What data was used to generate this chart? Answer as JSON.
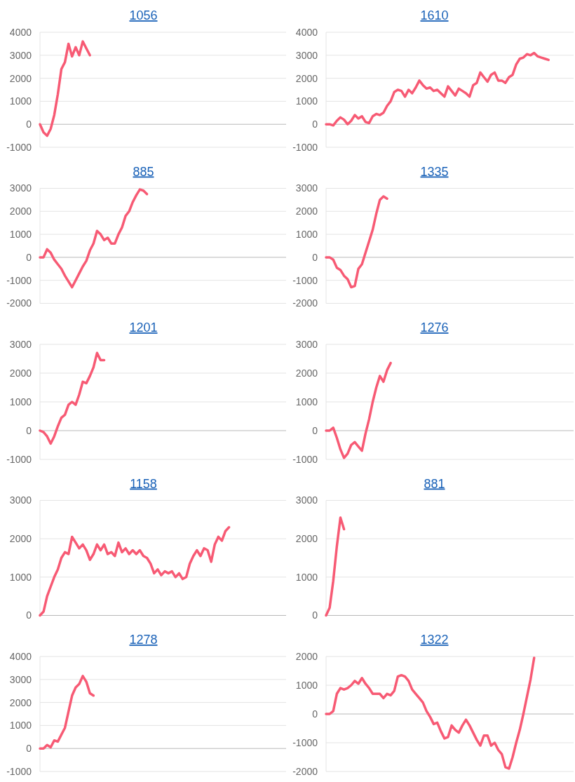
{
  "chart_data": [
    {
      "type": "line",
      "title": "1056",
      "color": "#f75a74",
      "ylim": [
        -1000,
        4000
      ],
      "yticks": [
        -1000,
        0,
        1000,
        2000,
        3000,
        4000
      ],
      "grid": "y",
      "tick_labels": "y",
      "categories": [
        null,
        null,
        null,
        null,
        null,
        null,
        null,
        null,
        null,
        null,
        null,
        null,
        null,
        null,
        null,
        null,
        null,
        null,
        null,
        null,
        null,
        null,
        null,
        null,
        null,
        null,
        null,
        null,
        null,
        null,
        null,
        null,
        null,
        null,
        null,
        null,
        null,
        null,
        null,
        null,
        null,
        null,
        null,
        null,
        null,
        null,
        null,
        null,
        null,
        null,
        null,
        null,
        null,
        null,
        null,
        null,
        null,
        null,
        null,
        null,
        null,
        null,
        null,
        null,
        null,
        null,
        null,
        null,
        null,
        null
      ],
      "values": [
        0,
        -350,
        -500,
        -200,
        400,
        1300,
        2400,
        2700,
        3500,
        2950,
        3350,
        3000,
        3600,
        3300,
        3000,
        null,
        null,
        null,
        null,
        null,
        null,
        null,
        null,
        null,
        null,
        null,
        null,
        null,
        null,
        null,
        null,
        null,
        null,
        null,
        null,
        null,
        null,
        null,
        null,
        null,
        null,
        null,
        null,
        null,
        null,
        null,
        null,
        null,
        null,
        null,
        null,
        null,
        null,
        null,
        null,
        null,
        null,
        null,
        null,
        null,
        null,
        null,
        null,
        null,
        null,
        null,
        null,
        null,
        null,
        null
      ]
    },
    {
      "type": "line",
      "title": "1610",
      "color": "#f75a74",
      "ylim": [
        -1000,
        4000
      ],
      "yticks": [
        -1000,
        0,
        1000,
        2000,
        3000,
        4000
      ],
      "grid": "y",
      "tick_labels": "y",
      "categories": [
        null,
        null,
        null,
        null,
        null,
        null,
        null,
        null,
        null,
        null,
        null,
        null,
        null,
        null,
        null,
        null,
        null,
        null,
        null,
        null,
        null,
        null,
        null,
        null,
        null,
        null,
        null,
        null,
        null,
        null,
        null,
        null,
        null,
        null,
        null,
        null,
        null,
        null,
        null,
        null,
        null,
        null,
        null,
        null,
        null,
        null,
        null,
        null,
        null,
        null,
        null,
        null,
        null,
        null,
        null,
        null,
        null,
        null,
        null,
        null,
        null,
        null,
        null,
        null,
        null,
        null,
        null,
        null,
        null,
        null
      ],
      "values": [
        0,
        0,
        -50,
        150,
        300,
        200,
        0,
        150,
        400,
        250,
        350,
        100,
        50,
        350,
        450,
        400,
        500,
        800,
        1000,
        1400,
        1500,
        1450,
        1200,
        1500,
        1350,
        1600,
        1900,
        1700,
        1550,
        1600,
        1450,
        1500,
        1350,
        1200,
        1650,
        1450,
        1250,
        1550,
        1450,
        1350,
        1200,
        1700,
        1800,
        2250,
        2050,
        1850,
        2150,
        2250,
        1900,
        1900,
        1800,
        2050,
        2150,
        2600,
        2850,
        2900,
        3050,
        3000,
        3100,
        2950,
        2900,
        2850,
        2800,
        null,
        null,
        null,
        null,
        null,
        null,
        null
      ]
    },
    {
      "type": "line",
      "title": "885",
      "color": "#f75a74",
      "ylim": [
        -2000,
        3000
      ],
      "yticks": [
        -2000,
        -1000,
        0,
        1000,
        2000,
        3000
      ],
      "grid": "y",
      "tick_labels": "y",
      "categories": [
        null,
        null,
        null,
        null,
        null,
        null,
        null,
        null,
        null,
        null,
        null,
        null,
        null,
        null,
        null,
        null,
        null,
        null,
        null,
        null,
        null,
        null,
        null,
        null,
        null,
        null,
        null,
        null,
        null,
        null,
        null,
        null,
        null,
        null,
        null,
        null,
        null,
        null,
        null,
        null,
        null,
        null,
        null,
        null,
        null,
        null,
        null,
        null,
        null,
        null,
        null,
        null,
        null,
        null,
        null,
        null,
        null,
        null,
        null,
        null,
        null,
        null,
        null,
        null,
        null,
        null,
        null,
        null,
        null,
        null
      ],
      "values": [
        0,
        0,
        350,
        200,
        -100,
        -300,
        -500,
        -800,
        -1050,
        -1300,
        -1000,
        -700,
        -400,
        -150,
        300,
        600,
        1150,
        1000,
        750,
        850,
        600,
        600,
        1000,
        1300,
        1800,
        2000,
        2400,
        2700,
        2950,
        2900,
        2750,
        null,
        null,
        null,
        null,
        null,
        null,
        null,
        null,
        null,
        null,
        null,
        null,
        null,
        null,
        null,
        null,
        null,
        null,
        null,
        null,
        null,
        null,
        null,
        null,
        null,
        null,
        null,
        null,
        null,
        null,
        null,
        null,
        null,
        null,
        null,
        null,
        null,
        null,
        null
      ]
    },
    {
      "type": "line",
      "title": "1335",
      "color": "#f75a74",
      "ylim": [
        -2000,
        3000
      ],
      "yticks": [
        -2000,
        -1000,
        0,
        1000,
        2000,
        3000
      ],
      "grid": "y",
      "tick_labels": "y",
      "categories": [
        null,
        null,
        null,
        null,
        null,
        null,
        null,
        null,
        null,
        null,
        null,
        null,
        null,
        null,
        null,
        null,
        null,
        null,
        null,
        null,
        null,
        null,
        null,
        null,
        null,
        null,
        null,
        null,
        null,
        null,
        null,
        null,
        null,
        null,
        null,
        null,
        null,
        null,
        null,
        null,
        null,
        null,
        null,
        null,
        null,
        null,
        null,
        null,
        null,
        null,
        null,
        null,
        null,
        null,
        null,
        null,
        null,
        null,
        null,
        null,
        null,
        null,
        null,
        null,
        null,
        null,
        null,
        null,
        null,
        null
      ],
      "values": [
        0,
        0,
        -100,
        -450,
        -550,
        -800,
        -950,
        -1300,
        -1250,
        -500,
        -300,
        200,
        700,
        1200,
        1900,
        2500,
        2650,
        2550,
        null,
        null,
        null,
        null,
        null,
        null,
        null,
        null,
        null,
        null,
        null,
        null,
        null,
        null,
        null,
        null,
        null,
        null,
        null,
        null,
        null,
        null,
        null,
        null,
        null,
        null,
        null,
        null,
        null,
        null,
        null,
        null,
        null,
        null,
        null,
        null,
        null,
        null,
        null,
        null,
        null,
        null,
        null,
        null,
        null,
        null,
        null,
        null,
        null,
        null,
        null,
        null
      ]
    },
    {
      "type": "line",
      "title": "1201",
      "color": "#f75a74",
      "ylim": [
        -1000,
        3000
      ],
      "yticks": [
        -1000,
        0,
        1000,
        2000,
        3000
      ],
      "grid": "y",
      "tick_labels": "y",
      "categories": [
        null,
        null,
        null,
        null,
        null,
        null,
        null,
        null,
        null,
        null,
        null,
        null,
        null,
        null,
        null,
        null,
        null,
        null,
        null,
        null,
        null,
        null,
        null,
        null,
        null,
        null,
        null,
        null,
        null,
        null,
        null,
        null,
        null,
        null,
        null,
        null,
        null,
        null,
        null,
        null,
        null,
        null,
        null,
        null,
        null,
        null,
        null,
        null,
        null,
        null,
        null,
        null,
        null,
        null,
        null,
        null,
        null,
        null,
        null,
        null,
        null,
        null,
        null,
        null,
        null,
        null,
        null,
        null,
        null,
        null
      ],
      "values": [
        0,
        -50,
        -200,
        -450,
        -200,
        150,
        450,
        550,
        900,
        1000,
        900,
        1250,
        1700,
        1650,
        1900,
        2200,
        2700,
        2450,
        2450,
        null,
        null,
        null,
        null,
        null,
        null,
        null,
        null,
        null,
        null,
        null,
        null,
        null,
        null,
        null,
        null,
        null,
        null,
        null,
        null,
        null,
        null,
        null,
        null,
        null,
        null,
        null,
        null,
        null,
        null,
        null,
        null,
        null,
        null,
        null,
        null,
        null,
        null,
        null,
        null,
        null,
        null,
        null,
        null,
        null,
        null,
        null,
        null,
        null,
        null,
        null
      ]
    },
    {
      "type": "line",
      "title": "1276",
      "color": "#f75a74",
      "ylim": [
        -1000,
        3000
      ],
      "yticks": [
        -1000,
        0,
        1000,
        2000,
        3000
      ],
      "grid": "y",
      "tick_labels": "y",
      "categories": [
        null,
        null,
        null,
        null,
        null,
        null,
        null,
        null,
        null,
        null,
        null,
        null,
        null,
        null,
        null,
        null,
        null,
        null,
        null,
        null,
        null,
        null,
        null,
        null,
        null,
        null,
        null,
        null,
        null,
        null,
        null,
        null,
        null,
        null,
        null,
        null,
        null,
        null,
        null,
        null,
        null,
        null,
        null,
        null,
        null,
        null,
        null,
        null,
        null,
        null,
        null,
        null,
        null,
        null,
        null,
        null,
        null,
        null,
        null,
        null,
        null,
        null,
        null,
        null,
        null,
        null,
        null,
        null,
        null,
        null
      ],
      "values": [
        0,
        0,
        100,
        -250,
        -650,
        -950,
        -800,
        -500,
        -400,
        -550,
        -700,
        -100,
        400,
        1000,
        1500,
        1900,
        1700,
        2100,
        2350,
        null,
        null,
        null,
        null,
        null,
        null,
        null,
        null,
        null,
        null,
        null,
        null,
        null,
        null,
        null,
        null,
        null,
        null,
        null,
        null,
        null,
        null,
        null,
        null,
        null,
        null,
        null,
        null,
        null,
        null,
        null,
        null,
        null,
        null,
        null,
        null,
        null,
        null,
        null,
        null,
        null,
        null,
        null,
        null,
        null,
        null,
        null,
        null,
        null,
        null,
        null
      ]
    },
    {
      "type": "line",
      "title": "1158",
      "color": "#f75a74",
      "ylim": [
        0,
        3000
      ],
      "yticks": [
        0,
        1000,
        2000,
        3000
      ],
      "grid": "y",
      "tick_labels": "y",
      "categories": [
        null,
        null,
        null,
        null,
        null,
        null,
        null,
        null,
        null,
        null,
        null,
        null,
        null,
        null,
        null,
        null,
        null,
        null,
        null,
        null,
        null,
        null,
        null,
        null,
        null,
        null,
        null,
        null,
        null,
        null,
        null,
        null,
        null,
        null,
        null,
        null,
        null,
        null,
        null,
        null,
        null,
        null,
        null,
        null,
        null,
        null,
        null,
        null,
        null,
        null,
        null,
        null,
        null,
        null,
        null,
        null,
        null,
        null,
        null,
        null,
        null,
        null,
        null,
        null,
        null,
        null,
        null,
        null,
        null,
        null
      ],
      "values": [
        0,
        100,
        500,
        750,
        1000,
        1200,
        1500,
        1650,
        1600,
        2050,
        1900,
        1750,
        1850,
        1700,
        1450,
        1600,
        1850,
        1700,
        1850,
        1600,
        1650,
        1550,
        1900,
        1650,
        1750,
        1600,
        1700,
        1600,
        1700,
        1550,
        1500,
        1350,
        1100,
        1200,
        1050,
        1150,
        1100,
        1150,
        1000,
        1100,
        950,
        1000,
        1350,
        1550,
        1700,
        1550,
        1750,
        1700,
        1400,
        1850,
        2050,
        1950,
        2200,
        2300,
        null,
        null,
        null,
        null,
        null,
        null,
        null,
        null,
        null,
        null,
        null,
        null,
        null,
        null,
        null,
        null
      ]
    },
    {
      "type": "line",
      "title": "881",
      "color": "#f75a74",
      "ylim": [
        0,
        3000
      ],
      "yticks": [
        0,
        1000,
        2000,
        3000
      ],
      "grid": "y",
      "tick_labels": "y",
      "categories": [
        null,
        null,
        null,
        null,
        null,
        null,
        null,
        null,
        null,
        null,
        null,
        null,
        null,
        null,
        null,
        null,
        null,
        null,
        null,
        null,
        null,
        null,
        null,
        null,
        null,
        null,
        null,
        null,
        null,
        null,
        null,
        null,
        null,
        null,
        null,
        null,
        null,
        null,
        null,
        null,
        null,
        null,
        null,
        null,
        null,
        null,
        null,
        null,
        null,
        null,
        null,
        null,
        null,
        null,
        null,
        null,
        null,
        null,
        null,
        null,
        null,
        null,
        null,
        null,
        null,
        null,
        null,
        null,
        null,
        null
      ],
      "values": [
        0,
        200,
        900,
        1800,
        2550,
        2250,
        null,
        null,
        null,
        null,
        null,
        null,
        null,
        null,
        null,
        null,
        null,
        null,
        null,
        null,
        null,
        null,
        null,
        null,
        null,
        null,
        null,
        null,
        null,
        null,
        null,
        null,
        null,
        null,
        null,
        null,
        null,
        null,
        null,
        null,
        null,
        null,
        null,
        null,
        null,
        null,
        null,
        null,
        null,
        null,
        null,
        null,
        null,
        null,
        null,
        null,
        null,
        null,
        null,
        null,
        null,
        null,
        null,
        null,
        null,
        null,
        null,
        null,
        null,
        null
      ]
    },
    {
      "type": "line",
      "title": "1278",
      "color": "#f75a74",
      "ylim": [
        -1000,
        4000
      ],
      "yticks": [
        -1000,
        0,
        1000,
        2000,
        3000,
        4000
      ],
      "grid": "y",
      "tick_labels": "y",
      "categories": [
        null,
        null,
        null,
        null,
        null,
        null,
        null,
        null,
        null,
        null,
        null,
        null,
        null,
        null,
        null,
        null,
        null,
        null,
        null,
        null,
        null,
        null,
        null,
        null,
        null,
        null,
        null,
        null,
        null,
        null,
        null,
        null,
        null,
        null,
        null,
        null,
        null,
        null,
        null,
        null,
        null,
        null,
        null,
        null,
        null,
        null,
        null,
        null,
        null,
        null,
        null,
        null,
        null,
        null,
        null,
        null,
        null,
        null,
        null,
        null,
        null,
        null,
        null,
        null,
        null,
        null,
        null,
        null,
        null,
        null
      ],
      "values": [
        0,
        0,
        150,
        50,
        350,
        300,
        600,
        900,
        1600,
        2300,
        2650,
        2800,
        3150,
        2900,
        2400,
        2300,
        null,
        null,
        null,
        null,
        null,
        null,
        null,
        null,
        null,
        null,
        null,
        null,
        null,
        null,
        null,
        null,
        null,
        null,
        null,
        null,
        null,
        null,
        null,
        null,
        null,
        null,
        null,
        null,
        null,
        null,
        null,
        null,
        null,
        null,
        null,
        null,
        null,
        null,
        null,
        null,
        null,
        null,
        null,
        null,
        null,
        null,
        null,
        null,
        null,
        null,
        null,
        null,
        null,
        null
      ]
    },
    {
      "type": "line",
      "title": "1322",
      "color": "#f75a74",
      "ylim": [
        -2000,
        2000
      ],
      "yticks": [
        -2000,
        -1000,
        0,
        1000,
        2000
      ],
      "grid": "y",
      "tick_labels": "y",
      "categories": [
        null,
        null,
        null,
        null,
        null,
        null,
        null,
        null,
        null,
        null,
        null,
        null,
        null,
        null,
        null,
        null,
        null,
        null,
        null,
        null,
        null,
        null,
        null,
        null,
        null,
        null,
        null,
        null,
        null,
        null,
        null,
        null,
        null,
        null,
        null,
        null,
        null,
        null,
        null,
        null,
        null,
        null,
        null,
        null,
        null,
        null,
        null,
        null,
        null,
        null,
        null,
        null,
        null,
        null,
        null,
        null,
        null,
        null,
        null,
        null,
        null,
        null,
        null,
        null,
        null,
        null,
        null,
        null,
        null,
        null
      ],
      "values": [
        0,
        0,
        100,
        700,
        900,
        850,
        900,
        1000,
        1150,
        1050,
        1250,
        1050,
        900,
        700,
        700,
        700,
        550,
        700,
        650,
        800,
        1300,
        1350,
        1300,
        1150,
        850,
        700,
        550,
        400,
        100,
        -100,
        -350,
        -300,
        -600,
        -850,
        -800,
        -400,
        -550,
        -650,
        -400,
        -200,
        -400,
        -650,
        -900,
        -1100,
        -750,
        -750,
        -1100,
        -1000,
        -1250,
        -1400,
        -1850,
        -1900,
        -1500,
        -1000,
        -550,
        0,
        600,
        1200,
        1950,
        null,
        null,
        null,
        null,
        null,
        null,
        null,
        null,
        null,
        null,
        null
      ]
    }
  ]
}
